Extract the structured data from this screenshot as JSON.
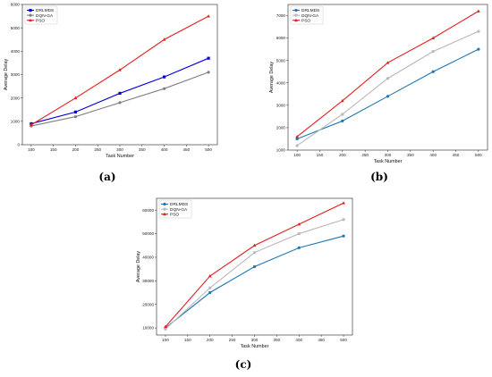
{
  "chart_data": [
    {
      "type": "line",
      "caption": "(a)",
      "xlabel": "Task Number",
      "ylabel": "Average Delay",
      "x": [
        100,
        200,
        300,
        400,
        500
      ],
      "xticks": [
        100,
        150,
        200,
        250,
        300,
        350,
        400,
        450,
        500
      ],
      "xlim": [
        80,
        520
      ],
      "ylim": [
        0,
        6000
      ],
      "yticks": [
        0,
        1000,
        2000,
        3000,
        4000,
        5000,
        6000
      ],
      "legend_position": "top-left",
      "grid": false,
      "series": [
        {
          "name": "DRLMDS",
          "color": "#0000dd",
          "marker": "square",
          "values": [
            900,
            1400,
            2200,
            2900,
            3700
          ]
        },
        {
          "name": "DQN-GA",
          "color": "#7f7f7f",
          "marker": "circle",
          "values": [
            800,
            1200,
            1800,
            2400,
            3100
          ]
        },
        {
          "name": "PSO",
          "color": "#e02020",
          "marker": "triangle",
          "values": [
            850,
            2000,
            3200,
            4500,
            5500
          ]
        }
      ]
    },
    {
      "type": "line",
      "caption": "(b)",
      "xlabel": "Task Number",
      "ylabel": "Average Delay",
      "x": [
        100,
        200,
        300,
        400,
        500
      ],
      "xticks": [
        100,
        150,
        200,
        250,
        300,
        350,
        400,
        450,
        500
      ],
      "xlim": [
        80,
        520
      ],
      "ylim": [
        1000,
        7500
      ],
      "yticks": [
        1000,
        2000,
        3000,
        4000,
        5000,
        6000,
        7000
      ],
      "legend_position": "top-left",
      "grid": false,
      "series": [
        {
          "name": "DRLMDS",
          "color": "#1f77b4",
          "marker": "circle",
          "values": [
            1500,
            2300,
            3400,
            4500,
            5500
          ]
        },
        {
          "name": "DQN-GA",
          "color": "#b8b8b8",
          "marker": "circle",
          "values": [
            1200,
            2600,
            4200,
            5400,
            6300
          ]
        },
        {
          "name": "PSO",
          "color": "#e02020",
          "marker": "triangle",
          "values": [
            1600,
            3200,
            4900,
            6000,
            7200
          ]
        }
      ]
    },
    {
      "type": "line",
      "caption": "(c)",
      "xlabel": "Task Number",
      "ylabel": "Average Delay",
      "x": [
        100,
        200,
        300,
        400,
        500
      ],
      "xticks": [
        100,
        150,
        200,
        250,
        300,
        350,
        400,
        450,
        500
      ],
      "xlim": [
        80,
        520
      ],
      "ylim": [
        7000,
        65000
      ],
      "yticks": [
        10000,
        20000,
        30000,
        40000,
        50000,
        60000
      ],
      "legend_position": "top-left",
      "grid": false,
      "series": [
        {
          "name": "DRLMDS",
          "color": "#1f77b4",
          "marker": "circle",
          "values": [
            10000,
            25000,
            36000,
            44000,
            49000
          ]
        },
        {
          "name": "DQN-GA",
          "color": "#b8b8b8",
          "marker": "circle",
          "values": [
            9500,
            27000,
            42000,
            50000,
            56000
          ]
        },
        {
          "name": "PSO",
          "color": "#e02020",
          "marker": "triangle",
          "values": [
            10500,
            32000,
            45000,
            54000,
            63000
          ]
        }
      ]
    }
  ]
}
